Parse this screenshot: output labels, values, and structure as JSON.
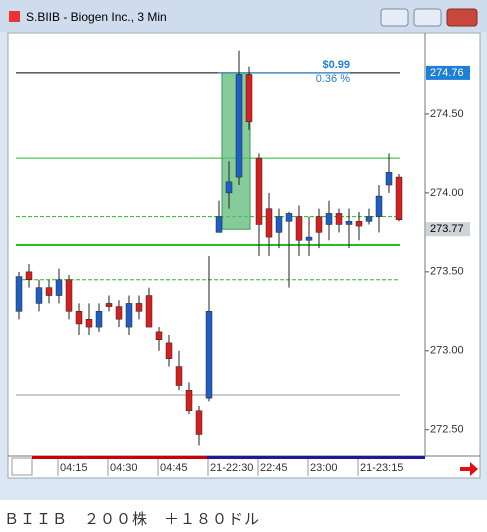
{
  "window": {
    "title": "S.BIIB - Biogen Inc., 3 Min"
  },
  "chart_data": {
    "type": "candlestick",
    "categories": [
      null,
      null,
      null,
      null,
      "04:15",
      null,
      null,
      null,
      null,
      "04:30",
      null,
      null,
      null,
      null,
      "04:45",
      null,
      null,
      null,
      null,
      "21-22:30",
      null,
      null,
      null,
      null,
      "22:45",
      null,
      null,
      null,
      null,
      "23:00",
      null,
      null,
      null,
      null,
      "21-23:15",
      null,
      null,
      null,
      null
    ],
    "open": [
      273.25,
      273.5,
      273.3,
      273.4,
      273.35,
      273.45,
      273.25,
      273.2,
      273.15,
      273.3,
      273.28,
      273.15,
      273.3,
      273.35,
      273.12,
      273.05,
      272.9,
      272.75,
      272.62,
      272.7,
      273.75,
      274.0,
      274.1,
      274.75,
      274.22,
      273.9,
      273.75,
      273.82,
      273.85,
      273.7,
      273.85,
      273.8,
      273.87,
      273.8,
      273.82,
      273.82,
      273.85,
      274.05,
      274.1
    ],
    "high": [
      273.5,
      273.55,
      273.45,
      273.45,
      273.52,
      273.48,
      273.3,
      273.3,
      273.3,
      273.35,
      273.32,
      273.35,
      273.35,
      273.4,
      273.15,
      273.1,
      273.0,
      272.8,
      272.65,
      273.6,
      273.95,
      274.2,
      274.9,
      274.8,
      274.25,
      274.0,
      273.9,
      273.88,
      273.92,
      273.85,
      273.9,
      273.95,
      273.9,
      273.9,
      273.88,
      273.9,
      274.05,
      274.25,
      274.12
    ],
    "low": [
      273.2,
      273.4,
      273.25,
      273.3,
      273.3,
      273.2,
      273.1,
      273.1,
      273.12,
      273.25,
      273.15,
      273.1,
      273.2,
      273.15,
      273.0,
      272.9,
      272.75,
      272.6,
      272.4,
      272.68,
      273.75,
      273.9,
      274.05,
      274.4,
      273.6,
      273.6,
      273.65,
      273.4,
      273.6,
      273.6,
      273.65,
      273.7,
      273.75,
      273.65,
      273.7,
      273.8,
      273.75,
      274.0,
      273.82
    ],
    "close": [
      273.47,
      273.45,
      273.4,
      273.35,
      273.45,
      273.25,
      273.17,
      273.15,
      273.25,
      273.28,
      273.2,
      273.3,
      273.25,
      273.15,
      273.07,
      272.95,
      272.78,
      272.62,
      272.47,
      273.25,
      273.85,
      274.07,
      274.75,
      274.45,
      273.8,
      273.72,
      273.85,
      273.87,
      273.7,
      273.72,
      273.75,
      273.87,
      273.8,
      273.82,
      273.79,
      273.85,
      273.98,
      274.13,
      273.83
    ],
    "up_color": "#1f5fc4",
    "down_color": "#d42020",
    "ylim": [
      272.34,
      275.0
    ],
    "yticks": [
      {
        "value": 272.5,
        "label": "272.50"
      },
      {
        "value": 273,
        "label": "273.00"
      },
      {
        "value": 273.5,
        "label": "273.50"
      },
      {
        "value": 274,
        "label": "274.00"
      },
      {
        "value": 274.5,
        "label": "274.50"
      }
    ],
    "price_markers": [
      {
        "value": 274.76,
        "color": "#1f7fd4"
      },
      {
        "value": 273.77,
        "color": "#cfd4da"
      }
    ],
    "levels": [
      {
        "value": 274.76,
        "color": "#000000",
        "dash": false,
        "width": 1
      },
      {
        "value": 274.22,
        "color": "#22bb22",
        "dash": false,
        "width": 1
      },
      {
        "value": 273.85,
        "color": "#22bb22",
        "dash": true,
        "width": 1
      },
      {
        "value": 273.67,
        "color": "#22bb22",
        "dash": false,
        "width": 2
      },
      {
        "value": 273.45,
        "color": "#22bb22",
        "dash": true,
        "width": 1
      },
      {
        "value": 272.72,
        "color": "#999999",
        "dash": false,
        "width": 1
      }
    ],
    "measure": {
      "from": 273.77,
      "to": 274.76,
      "label": "$0.99",
      "pct_label": "0.36 %"
    }
  },
  "caption": "ＢＩＩＢ　２００株　＋１８０ドル"
}
